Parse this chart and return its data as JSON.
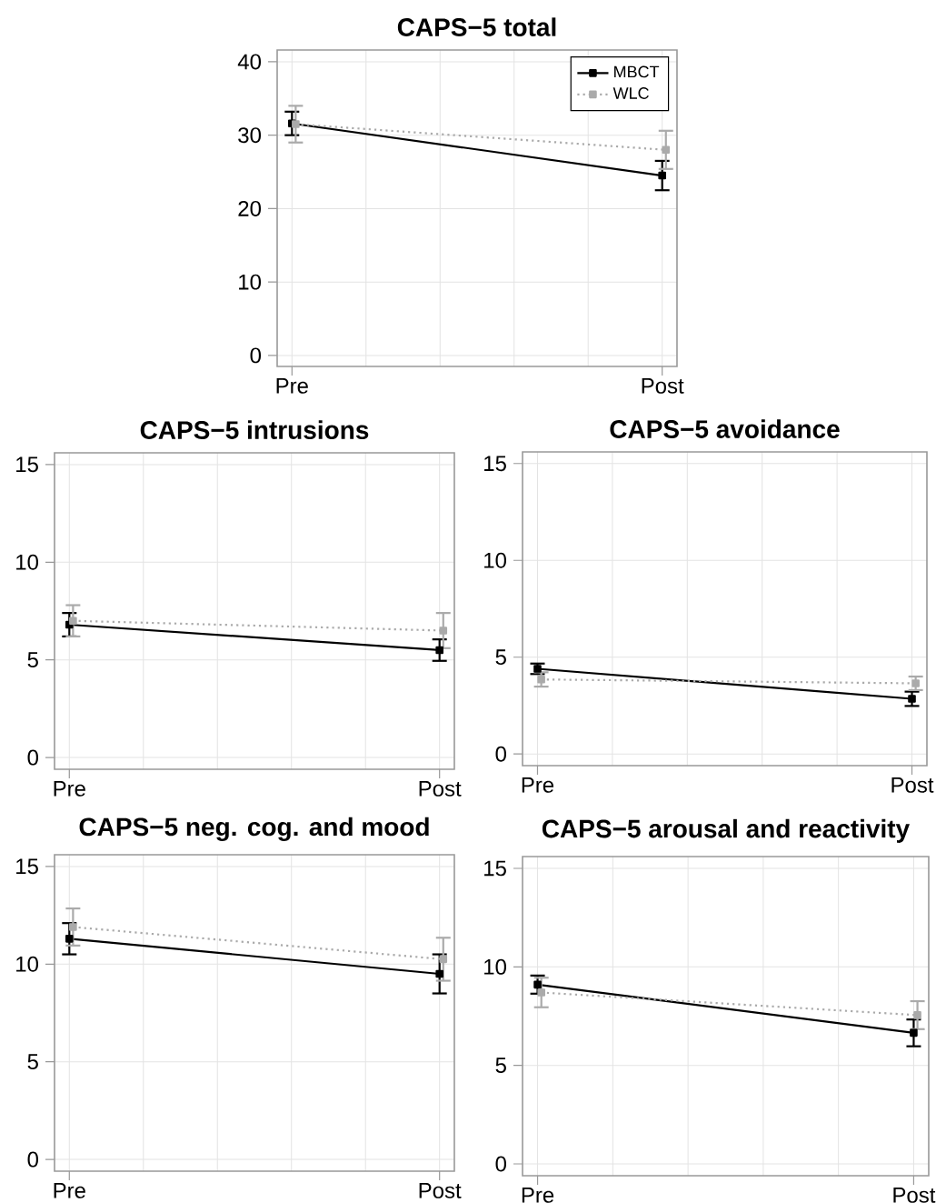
{
  "chart_data": [
    {
      "type": "line",
      "title": "CAPS−5 total",
      "categories": [
        "Pre",
        null,
        null,
        null,
        null,
        "Post"
      ],
      "ylim": [
        -1.5,
        41.6
      ],
      "yticks": [
        0,
        10,
        20,
        30,
        40
      ],
      "grid": true,
      "legend": "top right",
      "marker": "square",
      "series": [
        {
          "name": "MBCT",
          "color": "#000000",
          "line_style": "solid",
          "values": [
            31.6,
            null,
            null,
            null,
            null,
            24.5
          ],
          "errors": [
            1.6,
            null,
            null,
            null,
            null,
            2.0
          ]
        },
        {
          "name": "WLC",
          "color": "#aaaaaa",
          "line_style": "dotted",
          "values": [
            31.5,
            null,
            null,
            null,
            null,
            28.0
          ],
          "errors": [
            2.5,
            null,
            null,
            null,
            null,
            2.6
          ]
        }
      ]
    },
    {
      "type": "line",
      "title": "CAPS−5 intrusions",
      "categories": [
        "Pre",
        null,
        null,
        null,
        null,
        "Post"
      ],
      "ylim": [
        -0.6,
        15.6
      ],
      "yticks": [
        0,
        5,
        10,
        15
      ],
      "grid": true,
      "marker": "square",
      "series": [
        {
          "color": "#000000",
          "line_style": "solid",
          "values": [
            6.8,
            null,
            null,
            null,
            null,
            5.5
          ],
          "errors": [
            0.6,
            null,
            null,
            null,
            null,
            0.55
          ]
        },
        {
          "color": "#aaaaaa",
          "line_style": "dotted",
          "values": [
            7.0,
            null,
            null,
            null,
            null,
            6.5
          ],
          "errors": [
            0.8,
            null,
            null,
            null,
            null,
            0.9
          ]
        }
      ]
    },
    {
      "type": "line",
      "title": "CAPS−5 avoidance",
      "categories": [
        "Pre",
        null,
        null,
        null,
        null,
        "Post"
      ],
      "ylim": [
        -0.6,
        15.6
      ],
      "yticks": [
        0,
        5,
        10,
        15
      ],
      "grid": true,
      "marker": "square",
      "series": [
        {
          "color": "#000000",
          "line_style": "solid",
          "values": [
            4.4,
            null,
            null,
            null,
            null,
            2.85
          ],
          "errors": [
            0.27,
            null,
            null,
            null,
            null,
            0.37
          ]
        },
        {
          "color": "#aaaaaa",
          "line_style": "dotted",
          "values": [
            3.85,
            null,
            null,
            null,
            null,
            3.65
          ],
          "errors": [
            0.37,
            null,
            null,
            null,
            null,
            0.35
          ]
        }
      ]
    },
    {
      "type": "line",
      "title": "CAPS−5 neg. cog. and mood",
      "categories": [
        "Pre",
        null,
        null,
        null,
        null,
        "Post"
      ],
      "ylim": [
        -0.6,
        15.6
      ],
      "yticks": [
        0,
        5,
        10,
        15
      ],
      "grid": true,
      "marker": "square",
      "series": [
        {
          "color": "#000000",
          "line_style": "solid",
          "values": [
            11.3,
            null,
            null,
            null,
            null,
            9.5
          ],
          "errors": [
            0.8,
            null,
            null,
            null,
            null,
            1.0
          ]
        },
        {
          "color": "#aaaaaa",
          "line_style": "dotted",
          "values": [
            11.9,
            null,
            null,
            null,
            null,
            10.25
          ],
          "errors": [
            0.95,
            null,
            null,
            null,
            null,
            1.1
          ]
        }
      ]
    },
    {
      "type": "line",
      "title": "CAPS−5 arousal and reactivity",
      "categories": [
        "Pre",
        null,
        null,
        null,
        null,
        "Post"
      ],
      "ylim": [
        -0.6,
        15.6
      ],
      "yticks": [
        0,
        5,
        10,
        15
      ],
      "grid": true,
      "marker": "square",
      "series": [
        {
          "color": "#000000",
          "line_style": "solid",
          "values": [
            9.1,
            null,
            null,
            null,
            null,
            6.65
          ],
          "errors": [
            0.46,
            null,
            null,
            null,
            null,
            0.68
          ]
        },
        {
          "color": "#aaaaaa",
          "line_style": "dotted",
          "values": [
            8.7,
            null,
            null,
            null,
            null,
            7.55
          ],
          "errors": [
            0.75,
            null,
            null,
            null,
            null,
            0.71
          ]
        }
      ]
    }
  ]
}
